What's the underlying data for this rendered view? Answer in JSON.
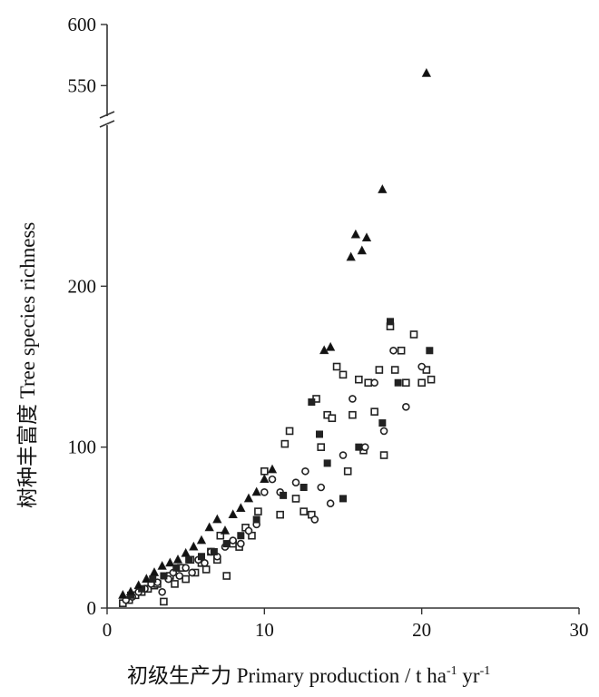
{
  "chart_data": {
    "type": "scatter",
    "xlabel": "初级生产力 Primary production / t ha",
    "xlabel_unit_parts": [
      {
        "text": "-1",
        "role": "superscript"
      },
      {
        "text": " yr",
        "role": "normal"
      },
      {
        "text": "-1",
        "role": "superscript"
      }
    ],
    "ylabel": "树种丰富度 Tree species richness",
    "xlim": [
      0,
      30
    ],
    "ylim_lower": [
      0,
      300
    ],
    "ylim_upper": [
      525,
      600
    ],
    "y_axis_break": true,
    "x_ticks": [
      "0",
      "10",
      "20",
      "30"
    ],
    "y_ticks_lower": [
      "0",
      "100",
      "200"
    ],
    "y_ticks_upper": [
      "550",
      "600"
    ],
    "grid": false,
    "series": [
      {
        "marker": "open-square",
        "x": [
          1.0,
          1.4,
          1.8,
          2.2,
          2.6,
          3.0,
          3.2,
          3.6,
          4.0,
          4.3,
          4.7,
          5.0,
          5.3,
          5.6,
          6.0,
          6.3,
          6.6,
          7.0,
          7.2,
          7.6,
          8.0,
          8.4,
          8.8,
          9.2,
          9.6,
          10.0,
          11.0,
          11.3,
          11.6,
          12.0,
          12.5,
          13.0,
          13.3,
          13.6,
          14.0,
          14.3,
          14.6,
          15.0,
          15.3,
          15.6,
          16.0,
          16.3,
          16.6,
          17.0,
          17.3,
          17.6,
          18.0,
          18.3,
          18.7,
          19.0,
          19.5,
          20.0,
          20.3,
          20.6
        ],
        "y": [
          3,
          5,
          8,
          10,
          12,
          14,
          15,
          4,
          20,
          15,
          25,
          18,
          30,
          22,
          28,
          24,
          35,
          30,
          45,
          20,
          40,
          38,
          50,
          45,
          60,
          85,
          58,
          102,
          110,
          68,
          60,
          58,
          130,
          100,
          120,
          118,
          150,
          145,
          85,
          120,
          142,
          98,
          140,
          122,
          148,
          95,
          175,
          148,
          160,
          140,
          170,
          140,
          148,
          142
        ]
      },
      {
        "marker": "open-circle",
        "x": [
          1.2,
          1.6,
          2.0,
          2.4,
          2.8,
          3.2,
          3.5,
          3.9,
          4.2,
          4.6,
          5.0,
          5.4,
          5.8,
          6.2,
          6.6,
          7.0,
          7.5,
          8.0,
          8.5,
          9.0,
          9.5,
          10.0,
          10.5,
          11.0,
          12.0,
          12.6,
          13.2,
          13.6,
          14.2,
          15.0,
          15.6,
          16.4,
          17.0,
          17.6,
          18.2,
          19.0,
          20.0
        ],
        "y": [
          5,
          7,
          10,
          12,
          15,
          16,
          10,
          18,
          22,
          20,
          25,
          22,
          30,
          28,
          35,
          32,
          38,
          42,
          40,
          48,
          52,
          72,
          80,
          72,
          78,
          85,
          55,
          75,
          65,
          95,
          130,
          100,
          140,
          110,
          160,
          125,
          150
        ]
      },
      {
        "marker": "filled-square",
        "x": [
          1.5,
          2.2,
          2.9,
          3.6,
          4.4,
          5.2,
          6.0,
          6.8,
          7.6,
          8.5,
          9.5,
          11.2,
          12.5,
          13.0,
          13.5,
          14.0,
          15.0,
          16.0,
          17.5,
          18.0,
          18.5,
          20.5
        ],
        "y": [
          8,
          12,
          18,
          20,
          25,
          30,
          32,
          35,
          40,
          45,
          55,
          70,
          75,
          128,
          108,
          90,
          68,
          100,
          115,
          178,
          140,
          160
        ]
      },
      {
        "marker": "filled-triangle",
        "x": [
          1.0,
          1.5,
          2.0,
          2.5,
          3.0,
          3.5,
          4.0,
          4.5,
          5.0,
          5.5,
          6.0,
          6.5,
          7.0,
          7.5,
          8.0,
          8.5,
          9.0,
          9.5,
          10.0,
          10.5,
          13.8,
          14.2,
          15.5,
          15.8,
          16.2,
          16.5,
          17.5,
          20.3
        ],
        "y": [
          8,
          10,
          14,
          18,
          22,
          26,
          28,
          30,
          34,
          38,
          42,
          50,
          55,
          48,
          58,
          62,
          68,
          72,
          80,
          86,
          160,
          162,
          218,
          232,
          222,
          230,
          260,
          560
        ]
      }
    ]
  }
}
